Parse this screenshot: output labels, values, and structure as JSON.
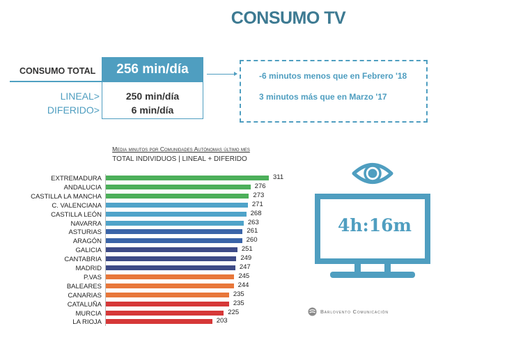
{
  "header": {
    "title": "CONSUMO TV"
  },
  "summary": {
    "total_label": "CONSUMO TOTAL",
    "total_value": "256 min/día",
    "lineal_label": "LINEAL>",
    "lineal_value": "250 min/día",
    "diferido_label": "DIFERIDO>",
    "diferido_value": "6 min/día"
  },
  "comparison": {
    "notes": [
      "-6 minutos menos que en Febrero '18",
      "3 minutos más que en Marzo '17"
    ]
  },
  "tv_graphic": {
    "time_label": "4h:16m",
    "icons": [
      "eye-icon",
      "tv-monitor-icon"
    ]
  },
  "branding": {
    "name": "Barlovento Comunicación",
    "icon": "barlovento-logo-icon"
  },
  "colors": {
    "accent": "#4f9ec0",
    "title": "#3d7a92",
    "green": "#4caf5a",
    "light_blue": "#4fa3c9",
    "blue": "#3a64a8",
    "navy": "#3e4b87",
    "orange": "#e8773a",
    "red": "#d63838"
  },
  "chart_data": {
    "type": "bar",
    "orientation": "horizontal",
    "title": "Media minutos por Comunidades Autónomas último mes",
    "subtitle": "TOTAL INDIVIDUOS | LINEAL + DIFERIDO",
    "xlabel": "",
    "ylabel": "",
    "grid": false,
    "legend": null,
    "categories": [
      "EXTREMADURA",
      "ANDALUCIA",
      "CASTILLA LA MANCHA",
      "C. VALENCIANA",
      "CASTILLA LEÓN",
      "NAVARRA",
      "ASTURIAS",
      "ARAGÓN",
      "GALICIA",
      "CANTABRIA",
      "MADRID",
      "P.VAS",
      "BALEARES",
      "CANARIAS",
      "CATALUÑA",
      "MURCIA",
      "LA RIOJA"
    ],
    "values": [
      311,
      276,
      273,
      271,
      268,
      263,
      261,
      260,
      251,
      249,
      247,
      245,
      244,
      235,
      235,
      225,
      203
    ],
    "bar_colors": [
      "#4caf5a",
      "#4caf5a",
      "#4caf5a",
      "#4fa3c9",
      "#4fa3c9",
      "#4fa3c9",
      "#3a64a8",
      "#3a64a8",
      "#3e4b87",
      "#3e4b87",
      "#3e4b87",
      "#e8773a",
      "#e8773a",
      "#e8773a",
      "#d63838",
      "#d63838",
      "#d63838"
    ],
    "xlim": [
      0,
      311
    ]
  }
}
